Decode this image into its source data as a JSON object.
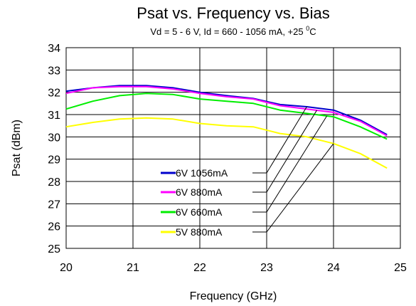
{
  "chart_data": {
    "type": "line",
    "title": "Psat vs. Frequency vs. Bias",
    "subtitle": {
      "before_sup": "Vd = 5 - 6 V, Id = 660 - 1056 mA, +25 ",
      "sup": "0",
      "after_sup": "C"
    },
    "xlabel": "Frequency (GHz)",
    "ylabel": "Psat (dBm)",
    "xlim": [
      20,
      25
    ],
    "ylim": [
      25,
      34
    ],
    "xticks": [
      "20",
      "21",
      "22",
      "23",
      "24",
      "25"
    ],
    "yticks": [
      "25",
      "26",
      "27",
      "28",
      "29",
      "30",
      "31",
      "32",
      "33",
      "34"
    ],
    "grid": true,
    "legend_position": "center-bottom",
    "series": [
      {
        "name": "6V 1056mA",
        "color": "#0000cc",
        "x": [
          20,
          20.4,
          20.8,
          21.2,
          21.6,
          22,
          22.4,
          22.8,
          23.2,
          23.6,
          24,
          24.4,
          24.8
        ],
        "y": [
          32.05,
          32.2,
          32.3,
          32.3,
          32.2,
          32.0,
          31.85,
          31.72,
          31.45,
          31.35,
          31.2,
          30.75,
          30.1
        ]
      },
      {
        "name": "6V 880mA",
        "color": "#ff00ff",
        "x": [
          20,
          20.4,
          20.8,
          21.2,
          21.6,
          22,
          22.4,
          22.8,
          23.2,
          23.6,
          24,
          24.4,
          24.8
        ],
        "y": [
          31.95,
          32.2,
          32.25,
          32.25,
          32.15,
          31.95,
          31.8,
          31.7,
          31.4,
          31.25,
          31.1,
          30.7,
          30.05
        ]
      },
      {
        "name": "6V 660mA",
        "color": "#00ee00",
        "x": [
          20,
          20.4,
          20.8,
          21.2,
          21.6,
          22,
          22.4,
          22.8,
          23.2,
          23.6,
          24,
          24.4,
          24.8
        ],
        "y": [
          31.25,
          31.6,
          31.85,
          31.95,
          31.9,
          31.7,
          31.6,
          31.5,
          31.2,
          31.05,
          30.9,
          30.45,
          29.9
        ]
      },
      {
        "name": "5V 880mA",
        "color": "#ffff00",
        "x": [
          20,
          20.4,
          20.8,
          21.2,
          21.6,
          22,
          22.4,
          22.8,
          23.2,
          23.6,
          24,
          24.4,
          24.8
        ],
        "y": [
          30.45,
          30.65,
          30.8,
          30.85,
          30.8,
          30.6,
          30.5,
          30.45,
          30.15,
          30.0,
          29.7,
          29.25,
          28.6
        ]
      }
    ]
  }
}
